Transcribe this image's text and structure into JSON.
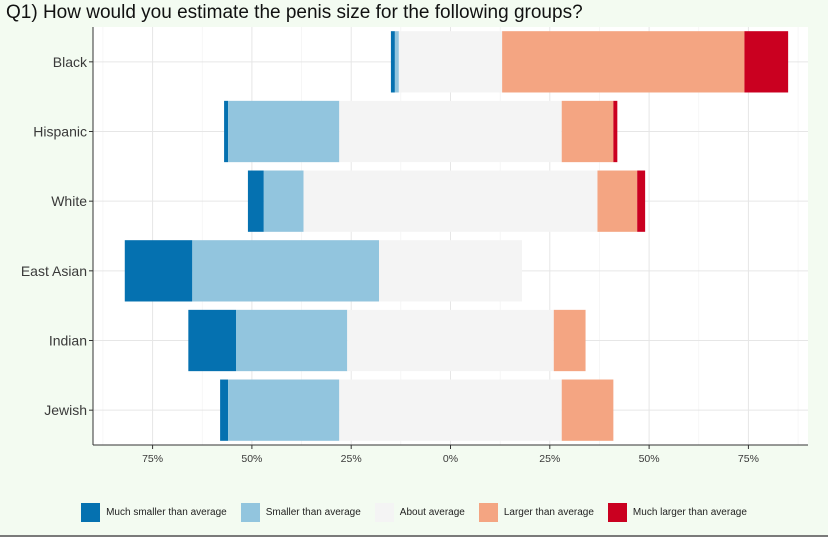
{
  "title": "Q1) How would you estimate the penis size for the following groups?",
  "colors": {
    "panel_bg": "#ffffff",
    "grid": "#e6e6e6",
    "axis": "#333333",
    "much_smaller": "#0571b0",
    "smaller": "#92c5de",
    "about": "#f4f4f4",
    "larger": "#f4a582",
    "much_larger": "#ca0020"
  },
  "chart_data": {
    "type": "bar",
    "orientation": "horizontal",
    "stacked": "diverging",
    "categories": [
      "Black",
      "Hispanic",
      "White",
      "East Asian",
      "Indian",
      "Jewish"
    ],
    "series": [
      {
        "name": "Much smaller than average",
        "color": "#0571b0",
        "values": [
          1,
          1,
          4,
          17,
          12,
          2
        ]
      },
      {
        "name": "Smaller than average",
        "color": "#92c5de",
        "values": [
          1,
          28,
          10,
          47,
          28,
          28
        ]
      },
      {
        "name": "About average",
        "color": "#f4f4f4",
        "values": [
          26,
          56,
          74,
          36,
          52,
          56
        ]
      },
      {
        "name": "Larger than average",
        "color": "#f4a582",
        "values": [
          61,
          13,
          10,
          0,
          8,
          13
        ]
      },
      {
        "name": "Much larger than average",
        "color": "#ca0020",
        "values": [
          11,
          1,
          2,
          0,
          0,
          0
        ]
      }
    ],
    "xlim": [
      -90,
      90
    ],
    "x_ticks": [
      -75,
      -50,
      -25,
      0,
      25,
      50,
      75
    ],
    "x_tick_labels": [
      "75%",
      "50%",
      "25%",
      "0%",
      "25%",
      "50%",
      "75%"
    ],
    "grid": true,
    "legend": "bottom"
  }
}
